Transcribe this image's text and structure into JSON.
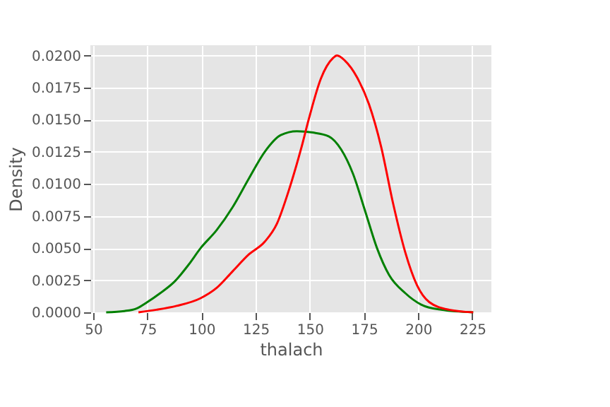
{
  "chart_data": {
    "type": "line",
    "xlabel": "thalach",
    "ylabel": "Density",
    "xlim": [
      48.7,
      233.8
    ],
    "ylim": [
      0,
      0.0208
    ],
    "xticks": [
      50,
      75,
      100,
      125,
      150,
      175,
      200,
      225
    ],
    "yticks": [
      {
        "value": 0,
        "label": "0.0000"
      },
      {
        "value": 0.0025,
        "label": "0.0025"
      },
      {
        "value": 0.005,
        "label": "0.0050"
      },
      {
        "value": 0.0075,
        "label": "0.0075"
      },
      {
        "value": 0.01,
        "label": "0.0100"
      },
      {
        "value": 0.0125,
        "label": "0.0125"
      },
      {
        "value": 0.015,
        "label": "0.0150"
      },
      {
        "value": 0.0175,
        "label": "0.0175"
      },
      {
        "value": 0.02,
        "label": "0.0200"
      }
    ],
    "grid": true,
    "series": [
      {
        "color": "#008000",
        "x": [
          56,
          64.4,
          70,
          75,
          81,
          87.6,
          94,
          99.6,
          107,
          114.4,
          121.8,
          129.2,
          136.6,
          144,
          151.4,
          158.8,
          164.4,
          169.9,
          175.5,
          181,
          186.6,
          194,
          201.4,
          210.6,
          225.4
        ],
        "values": [
          0,
          0.0001,
          0.0003,
          0.0008,
          0.0015,
          0.0024,
          0.0037,
          0.005,
          0.0064,
          0.0082,
          0.0104,
          0.0125,
          0.0138,
          0.0141,
          0.014,
          0.0137,
          0.0127,
          0.0108,
          0.0079,
          0.005,
          0.0029,
          0.0015,
          0.0006,
          0.0002,
          0
        ]
      },
      {
        "color": "#ff0000",
        "x": [
          70.9,
          79.2,
          88.5,
          99.6,
          107,
          114.4,
          121.8,
          129.2,
          134.8,
          140.3,
          145.9,
          149.6,
          155.1,
          160.7,
          162.5,
          166.2,
          171.8,
          177.3,
          182.9,
          188.4,
          194,
          199.5,
          205.1,
          214.3,
          225.4
        ],
        "values": [
          0,
          0.0002,
          0.0005,
          0.0011,
          0.0019,
          0.0032,
          0.0045,
          0.0055,
          0.0069,
          0.0095,
          0.0127,
          0.0151,
          0.0182,
          0.0198,
          0.02,
          0.0196,
          0.0183,
          0.0162,
          0.0129,
          0.0085,
          0.0047,
          0.0021,
          0.0008,
          0.0002,
          0
        ]
      }
    ]
  }
}
